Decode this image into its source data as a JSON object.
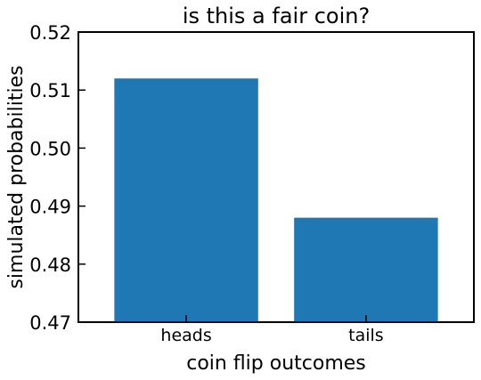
{
  "chart_data": {
    "type": "bar",
    "title": "is this a fair coin?",
    "xlabel": "coin flip outcomes",
    "ylabel": "simulated probabilities",
    "categories": [
      "heads",
      "tails"
    ],
    "values": [
      0.512,
      0.488
    ],
    "ylim": [
      0.47,
      0.52
    ],
    "yticks": [
      "0.47",
      "0.48",
      "0.49",
      "0.50",
      "0.51",
      "0.52"
    ],
    "bar_color": "#1f77b4",
    "grid": false,
    "legend": "none"
  }
}
